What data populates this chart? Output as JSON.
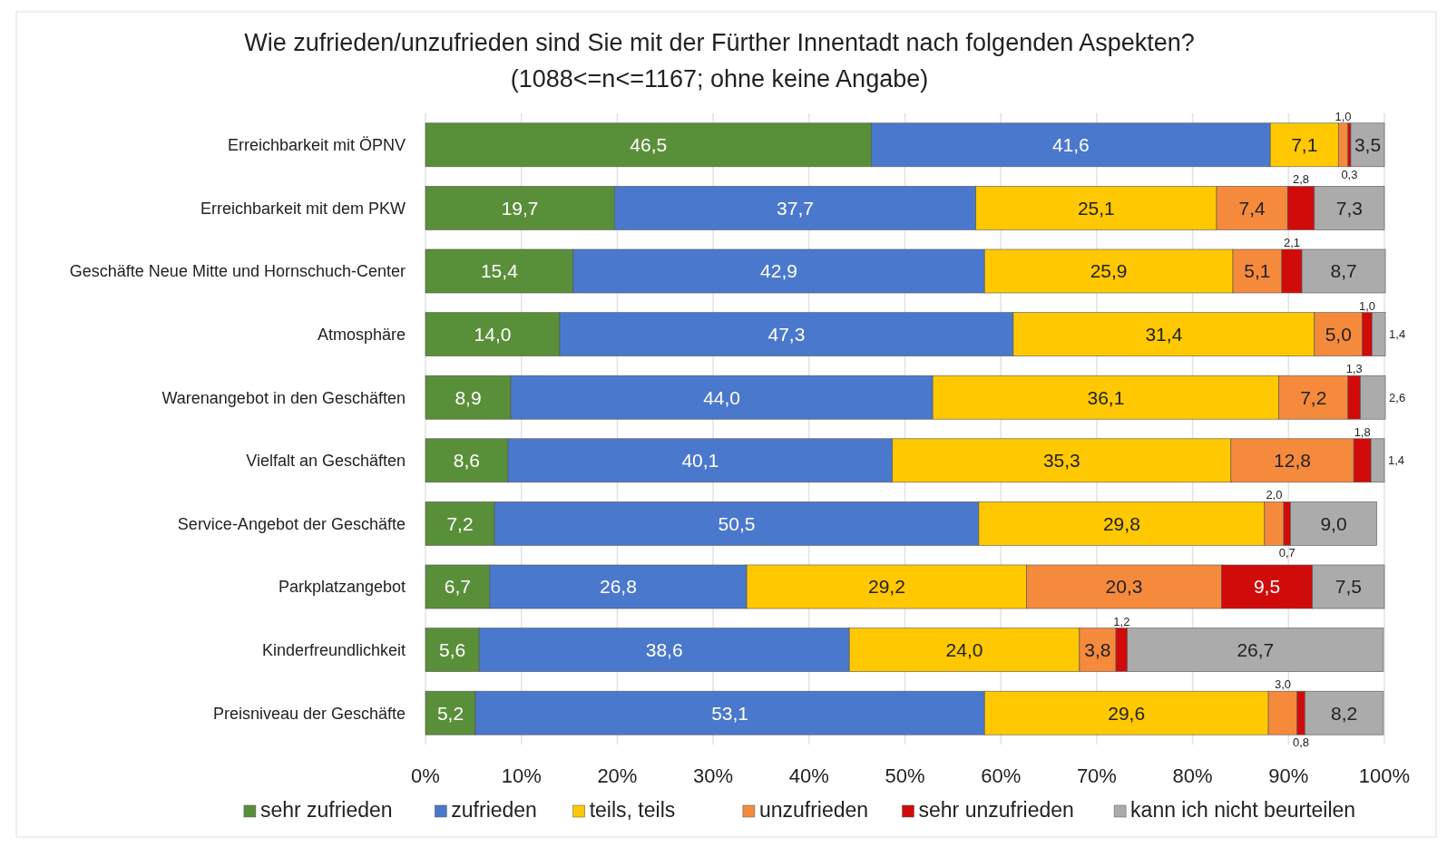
{
  "chart_data": {
    "type": "bar",
    "orientation": "horizontal",
    "stacked": true,
    "title": "Wie zufrieden/unzufrieden sind Sie mit der Fürther Innentadt nach folgenden Aspekten?",
    "subtitle": "(1088<=n<=1167; ohne keine Angabe)",
    "categories": [
      "Erreichbarkeit mit ÖPNV",
      "Erreichbarkeit mit dem PKW",
      "Geschäfte Neue Mitte und Hornschuch-Center",
      "Atmosphäre",
      "Warenangebot in den Geschäften",
      "Vielfalt an Geschäften",
      "Service-Angebot der Geschäfte",
      "Parkplatzangebot",
      "Kinderfreundlichkeit",
      "Preisniveau der Geschäfte"
    ],
    "series": [
      {
        "name": "sehr zufrieden",
        "color": "#5a8f3a",
        "values": [
          46.5,
          19.7,
          15.4,
          14.0,
          8.9,
          8.6,
          7.2,
          6.7,
          5.6,
          5.2
        ],
        "value_labels": [
          "46,5",
          "19,7",
          "15,4",
          "14,0",
          "8,9",
          "8,6",
          "7,2",
          "6,7",
          "5,6",
          "5,2"
        ]
      },
      {
        "name": "zufrieden",
        "color": "#4a78cc",
        "values": [
          41.6,
          37.7,
          42.9,
          47.3,
          44.0,
          40.1,
          50.5,
          26.8,
          38.6,
          53.1
        ],
        "value_labels": [
          "41,6",
          "37,7",
          "42,9",
          "47,3",
          "44,0",
          "40,1",
          "50,5",
          "26,8",
          "38,6",
          "53,1"
        ]
      },
      {
        "name": "teils, teils",
        "color": "#ffc800",
        "values": [
          7.1,
          25.1,
          25.9,
          31.4,
          36.1,
          35.3,
          29.8,
          29.2,
          24.0,
          29.6
        ],
        "value_labels": [
          "7,1",
          "25,1",
          "25,9",
          "31,4",
          "36,1",
          "35,3",
          "29,8",
          "29,2",
          "24,0",
          "29,6"
        ]
      },
      {
        "name": "unzufrieden",
        "color": "#f58a3c",
        "values": [
          1.0,
          7.4,
          5.1,
          5.0,
          7.2,
          12.8,
          2.0,
          20.3,
          3.8,
          3.0
        ],
        "value_labels": [
          "1,0",
          "7,4",
          "5,1",
          "5,0",
          "7,2",
          "12,8",
          "2,0",
          "20,3",
          "3,8",
          "3,0"
        ]
      },
      {
        "name": "sehr unzufrieden",
        "color": "#d10a0a",
        "values": [
          0.3,
          2.8,
          2.1,
          1.0,
          1.3,
          1.8,
          0.7,
          9.5,
          1.2,
          0.8
        ],
        "value_labels": [
          "0,3",
          "2,8",
          "2,1",
          "1,0",
          "1,3",
          "1,8",
          "0,7",
          "9,5",
          "1,2",
          "0,8"
        ]
      },
      {
        "name": "kann ich nicht beurteilen",
        "color": "#ababab",
        "values": [
          3.5,
          7.3,
          8.7,
          1.4,
          2.6,
          1.4,
          9.0,
          7.5,
          26.7,
          8.2
        ],
        "value_labels": [
          "3,5",
          "7,3",
          "8,7",
          "1,4",
          "2,6",
          "1,4",
          "9,0",
          "7,5",
          "26,7",
          "8,2"
        ]
      }
    ],
    "xlim": [
      0,
      100
    ],
    "xticks": [
      {
        "value": 0,
        "label": "0%"
      },
      {
        "value": 10,
        "label": "10%"
      },
      {
        "value": 20,
        "label": "20%"
      },
      {
        "value": 30,
        "label": "30%"
      },
      {
        "value": 40,
        "label": "40%"
      },
      {
        "value": 50,
        "label": "50%"
      },
      {
        "value": 60,
        "label": "60%"
      },
      {
        "value": 70,
        "label": "70%"
      },
      {
        "value": 80,
        "label": "80%"
      },
      {
        "value": 90,
        "label": "90%"
      },
      {
        "value": 100,
        "label": "100%"
      }
    ],
    "grid": "x",
    "legend": "bottom"
  }
}
